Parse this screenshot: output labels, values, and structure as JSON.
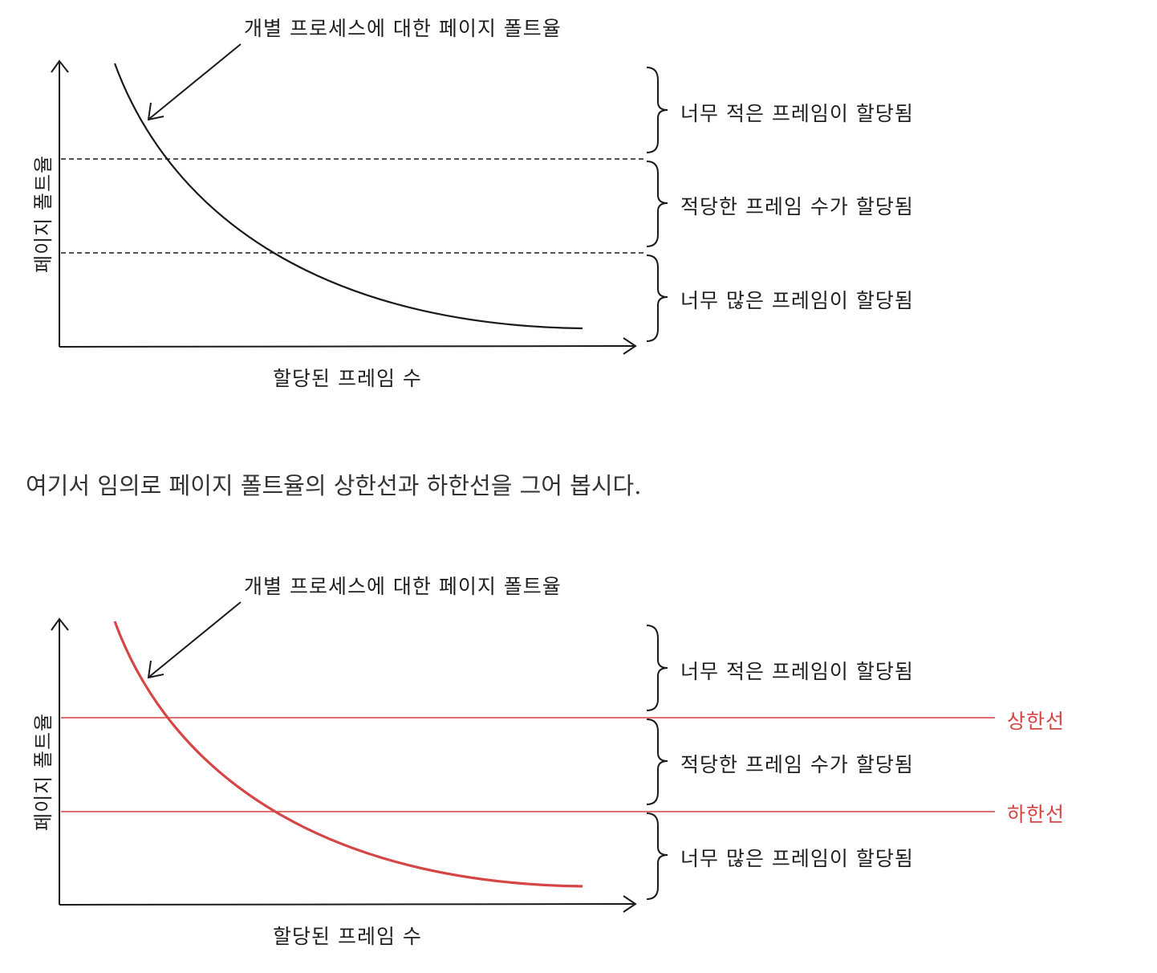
{
  "diagrams": [
    {
      "id": "top",
      "curve_label": "개별 프로세스에 대한 페이지 폴트율",
      "y_axis_label": "페이지 폴트율",
      "x_axis_label": "할당된 프레임 수",
      "regions": [
        "너무 적은 프레임이 할당됨",
        "적당한 프레임 수가 할당됨",
        "너무 많은 프레임이 할당됨"
      ],
      "threshold_style": "dashed",
      "curve_color": "#1a1a1a"
    },
    {
      "id": "bottom",
      "curve_label": "개별 프로세스에 대한 페이지 폴트율",
      "y_axis_label": "페이지 폴트율",
      "x_axis_label": "할당된 프레임 수",
      "regions": [
        "너무 적은 프레임이 할당됨",
        "적당한 프레임 수가 할당됨",
        "너무 많은 프레임이 할당됨"
      ],
      "threshold_style": "solid",
      "curve_color": "#d64545",
      "upper_limit_label": "상한선",
      "lower_limit_label": "하한선"
    }
  ],
  "caption": "여기서 임의로 페이지 폴트율의 상한선과 하한선을 그어 봅시다.",
  "colors": {
    "ink": "#1a1a1a",
    "accent_red": "#d64545",
    "line_red": "#e07070"
  }
}
